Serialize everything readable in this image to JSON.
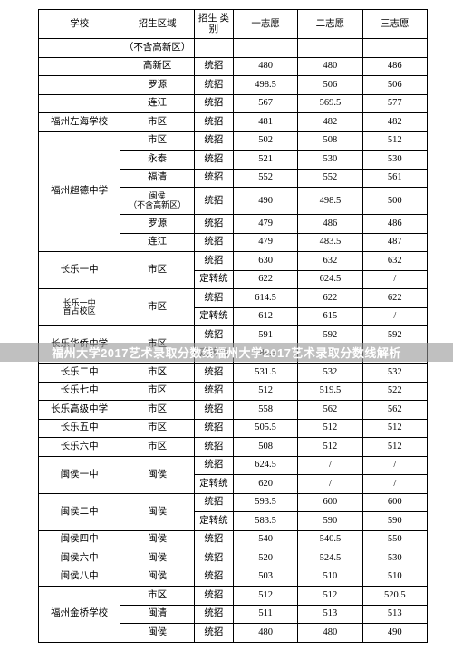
{
  "header": {
    "school": "学校",
    "area": "招生区域",
    "type": "招生\n类别",
    "s1": "一志愿",
    "s2": "二志愿",
    "s3": "三志愿"
  },
  "overlay": "福州大学2017艺术录取分数线福州大学2017艺术录取分数线解析",
  "rows": [
    {
      "school": "",
      "area": "（不含高新区）",
      "type": "",
      "s1": "",
      "s2": "",
      "s3": ""
    },
    {
      "school": "",
      "area": "高新区",
      "type": "统招",
      "s1": "480",
      "s2": "480",
      "s3": "486"
    },
    {
      "school": "",
      "area": "罗源",
      "type": "统招",
      "s1": "498.5",
      "s2": "506",
      "s3": "506"
    },
    {
      "school": "",
      "area": "连江",
      "type": "统招",
      "s1": "567",
      "s2": "569.5",
      "s3": "577"
    },
    {
      "school": "福州左海学校",
      "area": "市区",
      "type": "统招",
      "s1": "481",
      "s2": "482",
      "s3": "482"
    },
    {
      "school": "福州超德中学",
      "school_rows": 6,
      "area": "市区",
      "type": "统招",
      "s1": "502",
      "s2": "508",
      "s3": "512"
    },
    {
      "area": "永泰",
      "type": "统招",
      "s1": "521",
      "s2": "530",
      "s3": "530"
    },
    {
      "area": "福清",
      "type": "统招",
      "s1": "552",
      "s2": "552",
      "s3": "561"
    },
    {
      "area": "闽侯\n（不含高新区）",
      "type": "统招",
      "s1": "490",
      "s2": "498.5",
      "s3": "500",
      "tall": true
    },
    {
      "area": "罗源",
      "type": "统招",
      "s1": "479",
      "s2": "486",
      "s3": "486"
    },
    {
      "area": "连江",
      "type": "统招",
      "s1": "479",
      "s2": "483.5",
      "s3": "487"
    },
    {
      "school": "长乐一中",
      "school_rows": 2,
      "area": "市区",
      "area_rows": 2,
      "type": "统招",
      "s1": "630",
      "s2": "632",
      "s3": "632"
    },
    {
      "type": "定转统",
      "s1": "622",
      "s2": "624.5",
      "s3": "/"
    },
    {
      "school": "长乐一中\n首占校区",
      "school_rows": 2,
      "area": "市区",
      "area_rows": 2,
      "type": "统招",
      "s1": "614.5",
      "s2": "622",
      "s3": "622"
    },
    {
      "type": "定转统",
      "s1": "612",
      "s2": "615",
      "s3": "/"
    },
    {
      "school": "长乐华侨中学",
      "school_rows": 2,
      "area": "市区",
      "area_rows": 2,
      "type": "统招",
      "s1": "591",
      "s2": "592",
      "s3": "592"
    },
    {
      "type": "定转统",
      "s1": "589.5",
      "s2": "/",
      "s3": "/"
    },
    {
      "school": "长乐二中",
      "area": "市区",
      "type": "统招",
      "s1": "531.5",
      "s2": "532",
      "s3": "532"
    },
    {
      "school": "长乐七中",
      "area": "市区",
      "type": "统招",
      "s1": "512",
      "s2": "519.5",
      "s3": "522"
    },
    {
      "school": "长乐高级中学",
      "area": "市区",
      "type": "统招",
      "s1": "558",
      "s2": "562",
      "s3": "562"
    },
    {
      "school": "长乐五中",
      "area": "市区",
      "type": "统招",
      "s1": "505.5",
      "s2": "512",
      "s3": "512"
    },
    {
      "school": "长乐六中",
      "area": "市区",
      "type": "统招",
      "s1": "508",
      "s2": "512",
      "s3": "512"
    },
    {
      "school": "闽侯一中",
      "school_rows": 2,
      "area": "闽侯",
      "area_rows": 2,
      "type": "统招",
      "s1": "624.5",
      "s2": "/",
      "s3": "/"
    },
    {
      "type": "定转统",
      "s1": "620",
      "s2": "/",
      "s3": "/"
    },
    {
      "school": "闽侯二中",
      "school_rows": 2,
      "area": "闽侯",
      "area_rows": 2,
      "type": "统招",
      "s1": "593.5",
      "s2": "600",
      "s3": "600"
    },
    {
      "type": "定转统",
      "s1": "583.5",
      "s2": "590",
      "s3": "590"
    },
    {
      "school": "闽侯四中",
      "area": "闽侯",
      "type": "统招",
      "s1": "540",
      "s2": "540.5",
      "s3": "550"
    },
    {
      "school": "闽侯六中",
      "area": "闽侯",
      "type": "统招",
      "s1": "520",
      "s2": "524.5",
      "s3": "530"
    },
    {
      "school": "闽侯八中",
      "area": "闽侯",
      "type": "统招",
      "s1": "503",
      "s2": "510",
      "s3": "510"
    },
    {
      "school": "福州金桥学校",
      "school_rows": 3,
      "area": "市区",
      "type": "统招",
      "s1": "512",
      "s2": "512",
      "s3": "520.5"
    },
    {
      "area": "闽清",
      "type": "统招",
      "s1": "511",
      "s2": "513",
      "s3": "513"
    },
    {
      "area": "闽侯",
      "type": "统招",
      "s1": "480",
      "s2": "480",
      "s3": "490"
    }
  ]
}
